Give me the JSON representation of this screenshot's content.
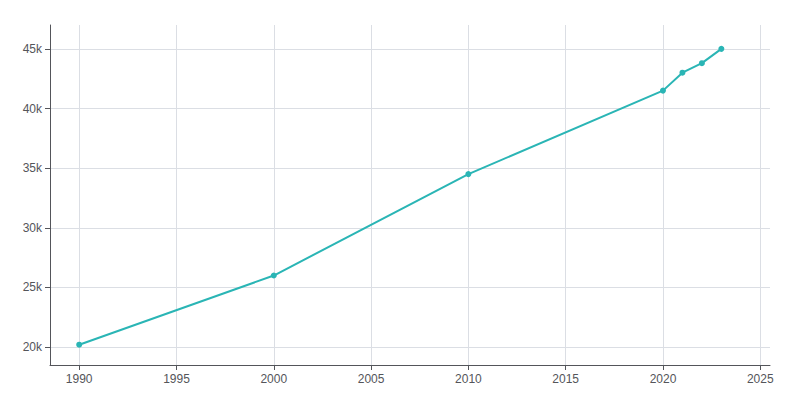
{
  "chart_data": {
    "type": "line",
    "x": [
      1990,
      2000,
      2010,
      2020,
      2021,
      2022,
      2023
    ],
    "values": [
      20200,
      26000,
      34500,
      41500,
      43000,
      43800,
      45000
    ],
    "color": "#2ab5b5",
    "marker": "circle",
    "xlim": [
      1988.5,
      2025.5
    ],
    "xticks": [
      1990,
      1995,
      2000,
      2005,
      2010,
      2015,
      2020,
      2025
    ],
    "ylim": [
      18500,
      47000
    ],
    "yticks": [
      {
        "value": 20000,
        "label": "20k"
      },
      {
        "value": 25000,
        "label": "25k"
      },
      {
        "value": 30000,
        "label": "30k"
      },
      {
        "value": 35000,
        "label": "35k"
      },
      {
        "value": 40000,
        "label": "40k"
      },
      {
        "value": 45000,
        "label": "45k"
      }
    ],
    "grid": true
  }
}
